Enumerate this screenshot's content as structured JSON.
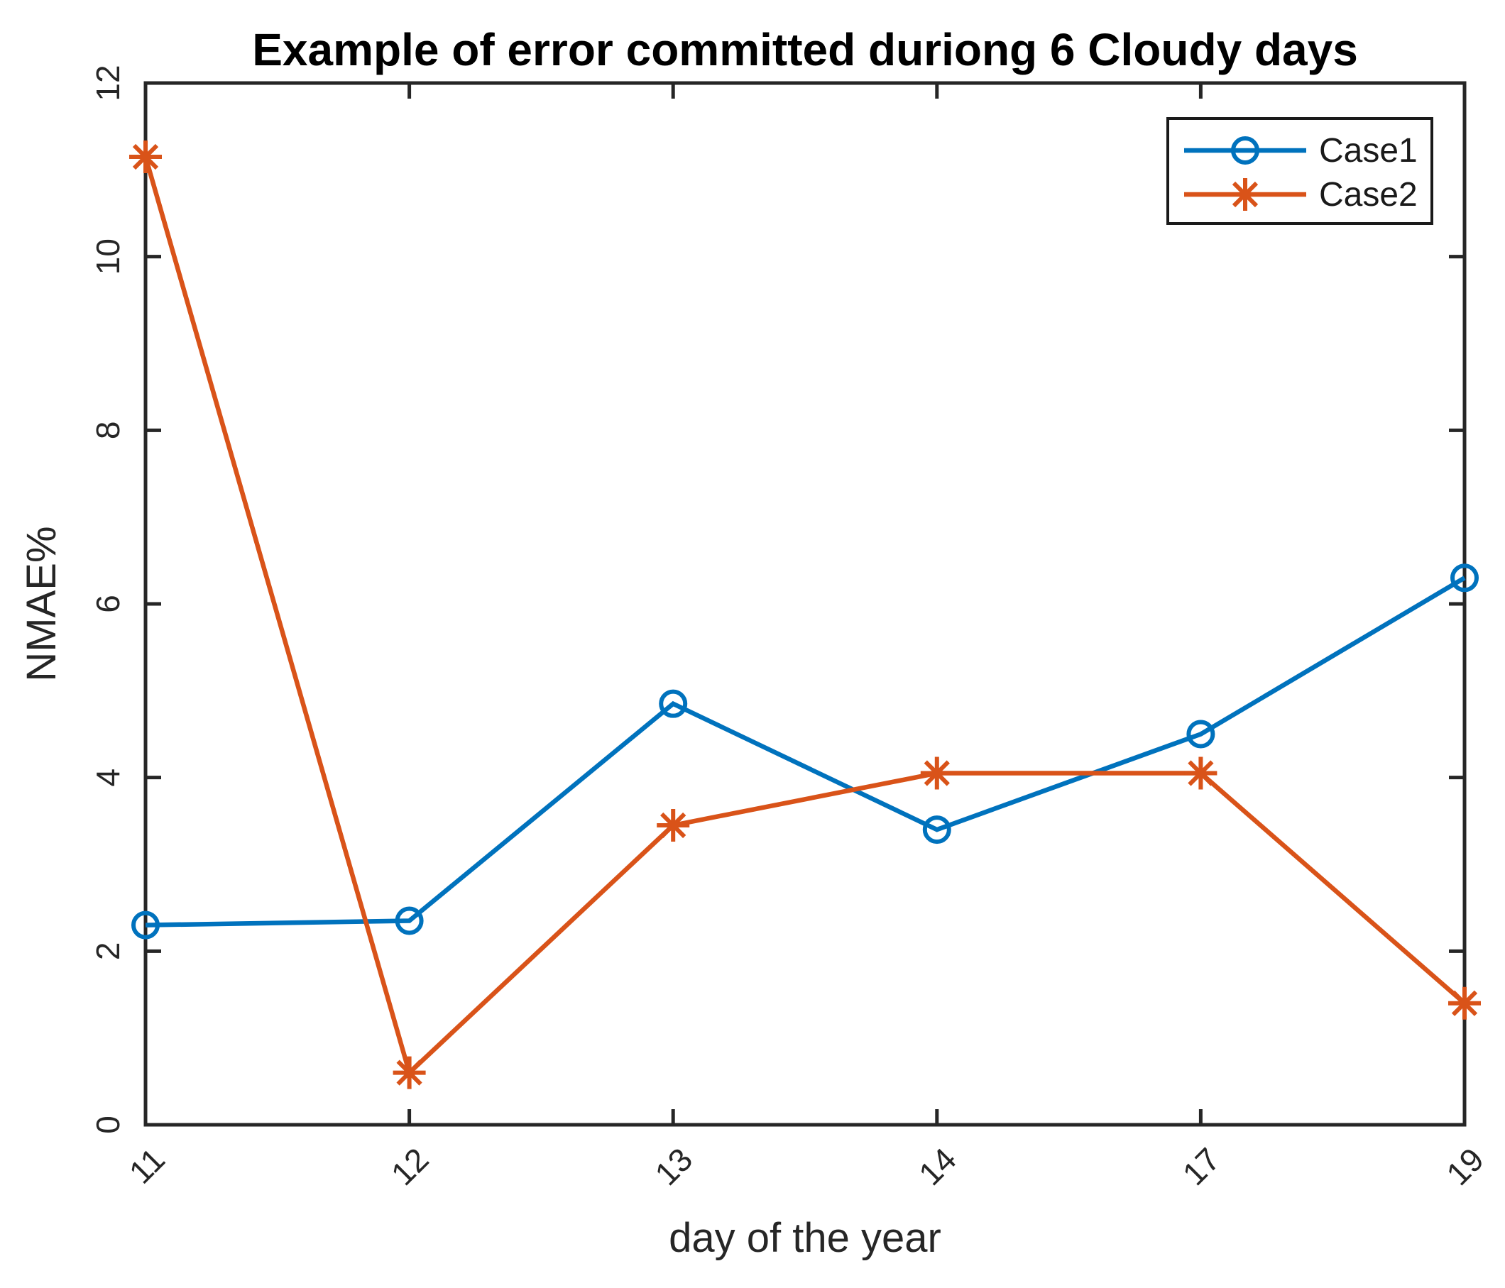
{
  "chart_data": {
    "type": "line",
    "title": "Example of error committed duriong 6 Cloudy days",
    "xlabel": "day of the year",
    "ylabel": "NMAE%",
    "categories": [
      "11",
      "12",
      "13",
      "14",
      "17",
      "19"
    ],
    "series": [
      {
        "name": "Case1",
        "marker": "circle",
        "color": "#0072BD",
        "values": [
          2.3,
          2.35,
          4.85,
          3.4,
          4.5,
          6.3
        ]
      },
      {
        "name": "Case2",
        "marker": "asterisk",
        "color": "#D95319",
        "values": [
          11.15,
          0.6,
          3.45,
          4.05,
          4.05,
          1.4
        ]
      }
    ],
    "ylim": [
      0,
      12
    ],
    "yticks": [
      0,
      2,
      4,
      6,
      8,
      10,
      12
    ],
    "xtick_angle_deg": 45,
    "ytick_angle_deg": 90,
    "grid": false,
    "legend_position": "top-right",
    "axis_color": "#262626",
    "background_color": "#ffffff"
  }
}
